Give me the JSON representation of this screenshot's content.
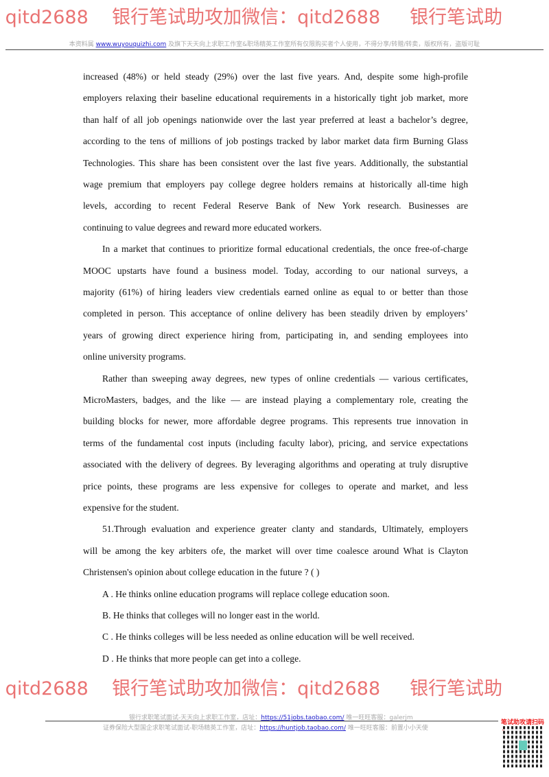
{
  "header": {
    "prefix": "本资料属",
    "link": "www.wuyouquizhi.com",
    "suffix": "及旗下天天向上求职工作室&职场精英工作室所有仅限购买者个人使用，不得分享/转赠/转卖，版权所有，盗版可耻"
  },
  "lines": [
    {
      "t": "increased (48%) or held steady (29%) over the last five years. And, despite some high-profile"
    },
    {
      "t": "employers relaxing their baseline educational requirements in a historically tight job market, more"
    },
    {
      "t": "than half of all job openings nationwide over the last year preferred at least a bachelor’s degree,"
    },
    {
      "t": "according to the tens of millions of job postings tracked by labor market data firm Burning Glass"
    },
    {
      "t": "Technologies. This share has been consistent over the last five years. Additionally, the substantial"
    },
    {
      "t": "wage premium that employers pay college degree holders remains at historically all-time high"
    },
    {
      "t": "levels, according to recent Federal Reserve Bank of New York research. Businesses are"
    },
    {
      "t": "continuing to value degrees and reward more educated workers.",
      "last": true
    },
    {
      "t": "In a market that continues to prioritize formal educational credentials, the once free-of-charge",
      "ind": true
    },
    {
      "t": "MOOC upstarts have found a business model. Today, according to our national surveys, a"
    },
    {
      "t": "majority (61%) of hiring leaders view credentials earned online as equal to or better than those"
    },
    {
      "t": "completed in person. This acceptance of online delivery has been steadily driven by employers’"
    },
    {
      "t": "years of growing direct experience hiring from, participating in, and sending employees into"
    },
    {
      "t": "online university programs.",
      "last": true
    },
    {
      "t": "Rather than sweeping away degrees, new types of online credentials — various certificates,",
      "ind": true
    },
    {
      "t": "MicroMasters, badges, and the like — are instead playing a complementary role, creating the"
    },
    {
      "t": "building blocks for newer, more affordable degree programs. This represents true innovation in"
    },
    {
      "t": "terms of the fundamental cost inputs (including faculty labor), pricing, and service expectations"
    },
    {
      "t": "associated with the delivery of degrees. By leveraging algorithms and operating at truly disruptive"
    },
    {
      "t": "price points, these programs are less expensive for colleges to operate and market, and less"
    },
    {
      "t": "expensive for the student.",
      "last": true
    },
    {
      "t": "51.Through evaluation and experience greater clanty and standards, Ultimately, employers",
      "ind": true
    },
    {
      "t": "will be among the key arbiters ofe, the market will over time coalesce around What is Clayton"
    },
    {
      "t": "Christensen's opinion about college education in the future ? (        )",
      "last": true
    },
    {
      "t": "A . He thinks online education programs will replace college education soon.",
      "ind": true,
      "last": true
    },
    {
      "t": "B. He thinks that colleges will no longer east in the world.",
      "ind": true,
      "last": true
    },
    {
      "t": "C . He thinks colleges will be less needed as online education will be well received.",
      "ind": true,
      "last": true
    },
    {
      "t": "D . He thinks that more people can get into a college.",
      "ind": true,
      "last": true
    }
  ],
  "watermarks": [
    ": qitd2688    银行笔试助攻加微信：qitd2688     银行笔试助",
    ": qitd2688    银行笔试助攻加微信：qitd2688     银行笔试助"
  ],
  "footer": {
    "line1_prefix": "银行求职笔试面试-天天向上求职工作室，店址：",
    "line1_link": "https://51jobs.taobao.com/",
    "line1_suffix": "唯一旺旺客服：galerjm",
    "line2_prefix": "证券保险大型国企求职笔试面试-职场精英工作室，店址：",
    "line2_link": "https://huntjob.taobao.com/",
    "line2_suffix": "唯一旺旺客服：前置小小天使",
    "qr_label": "笔试助攻请扫码↓"
  }
}
